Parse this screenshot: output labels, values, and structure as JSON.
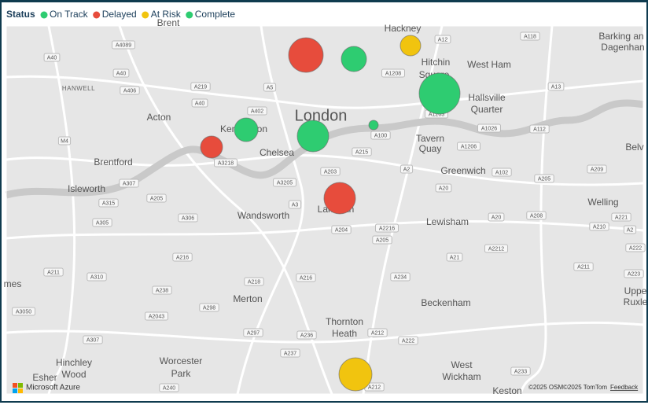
{
  "legend": {
    "title": "Status",
    "items": [
      {
        "label": "On Track",
        "color": "#2ecc71"
      },
      {
        "label": "Delayed",
        "color": "#e74c3c"
      },
      {
        "label": "At Risk",
        "color": "#f1c40f"
      },
      {
        "label": "Complete",
        "color": "#2ecc71"
      }
    ]
  },
  "map": {
    "city": "London",
    "places": [
      "Brent",
      "Hackney",
      "Barking an",
      "Dagenhan",
      "West Ham",
      "Hitchin",
      "Square",
      "HANWELL",
      "Acton",
      "Hallsville",
      "Quarter",
      "Kensington",
      "Chelsea",
      "Tavern",
      "Quay",
      "Belv",
      "Brentford",
      "Greenwich",
      "Isleworth",
      "Wandsworth",
      "Lambeth",
      "Welling",
      "Lewisham",
      "mes",
      "Merton",
      "Uppe",
      "Ruxle",
      "Beckenham",
      "Thornton",
      "Heath",
      "Hinchley",
      "Wood",
      "Worcester",
      "Park",
      "West",
      "Wickham",
      "Esher",
      "Keston"
    ],
    "roads": [
      "A4089",
      "A40",
      "A40",
      "A406",
      "A219",
      "A5",
      "A40",
      "A402",
      "M4",
      "A3218",
      "A307",
      "A315",
      "A205",
      "A305",
      "A306",
      "A3",
      "A3205",
      "A203",
      "A215",
      "A100",
      "A2",
      "A20",
      "A205",
      "A209",
      "A102",
      "A1206",
      "A1026",
      "A112",
      "A13",
      "A12",
      "A118",
      "A1208",
      "A1203",
      "A216",
      "A218",
      "A216",
      "A204",
      "A2216",
      "A205",
      "A234",
      "A21",
      "A2212",
      "A20",
      "A208",
      "A210",
      "A221",
      "A2",
      "A222",
      "A211",
      "A223",
      "A211",
      "A310",
      "A238",
      "A3050",
      "A2043",
      "A298",
      "A297",
      "A236",
      "A212",
      "A222",
      "A237",
      "A307",
      "A240",
      "A212",
      "A233"
    ]
  },
  "footer": {
    "brand": "Microsoft Azure",
    "osm": "©2025 OSM",
    "tomtom": "©2025 TomTom",
    "feedback": "Feedback"
  }
}
